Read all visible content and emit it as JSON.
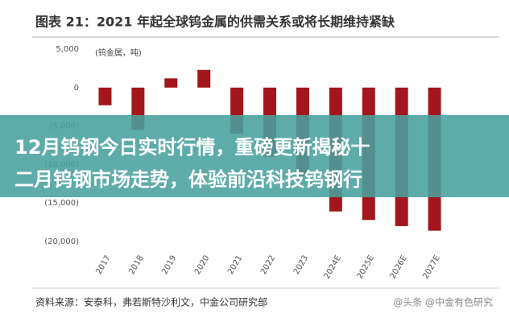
{
  "chart_data": {
    "type": "bar",
    "title": "图表 21：2021 年起全球钨金属的供需关系或将长期维持紧缺",
    "unit_label": "(钨金属，吨)",
    "categories": [
      "2017",
      "2018",
      "2019",
      "2020",
      "2021",
      "2022",
      "2023",
      "2024E",
      "2025E",
      "2026E",
      "2027E"
    ],
    "values": [
      -2300,
      -5500,
      1200,
      2300,
      -6000,
      -9000,
      -11500,
      -16100,
      -17200,
      -18000,
      -18600
    ],
    "color": "#a3161c",
    "ylim": [
      -20000,
      5000
    ],
    "yticks": [
      {
        "value": 5000,
        "label": "5,000"
      },
      0,
      {
        "value": -5000,
        "label": "(5,000)"
      },
      {
        "value": -10000,
        "label": "(10,000)"
      },
      {
        "value": -15000,
        "label": "(15,000)"
      },
      {
        "value": -20000,
        "label": "(20,000)"
      }
    ],
    "grid": false,
    "source": "资料来源：安泰科，弗若斯特沙利文，中金公司研究部"
  },
  "overlay_lines": [
    "12月钨钢今日实时行情，重磅更新揭秘十",
    "二月钨钢市场走势，体验前沿科技钨钢行"
  ],
  "watermark": "@头条 @中金有色研究"
}
